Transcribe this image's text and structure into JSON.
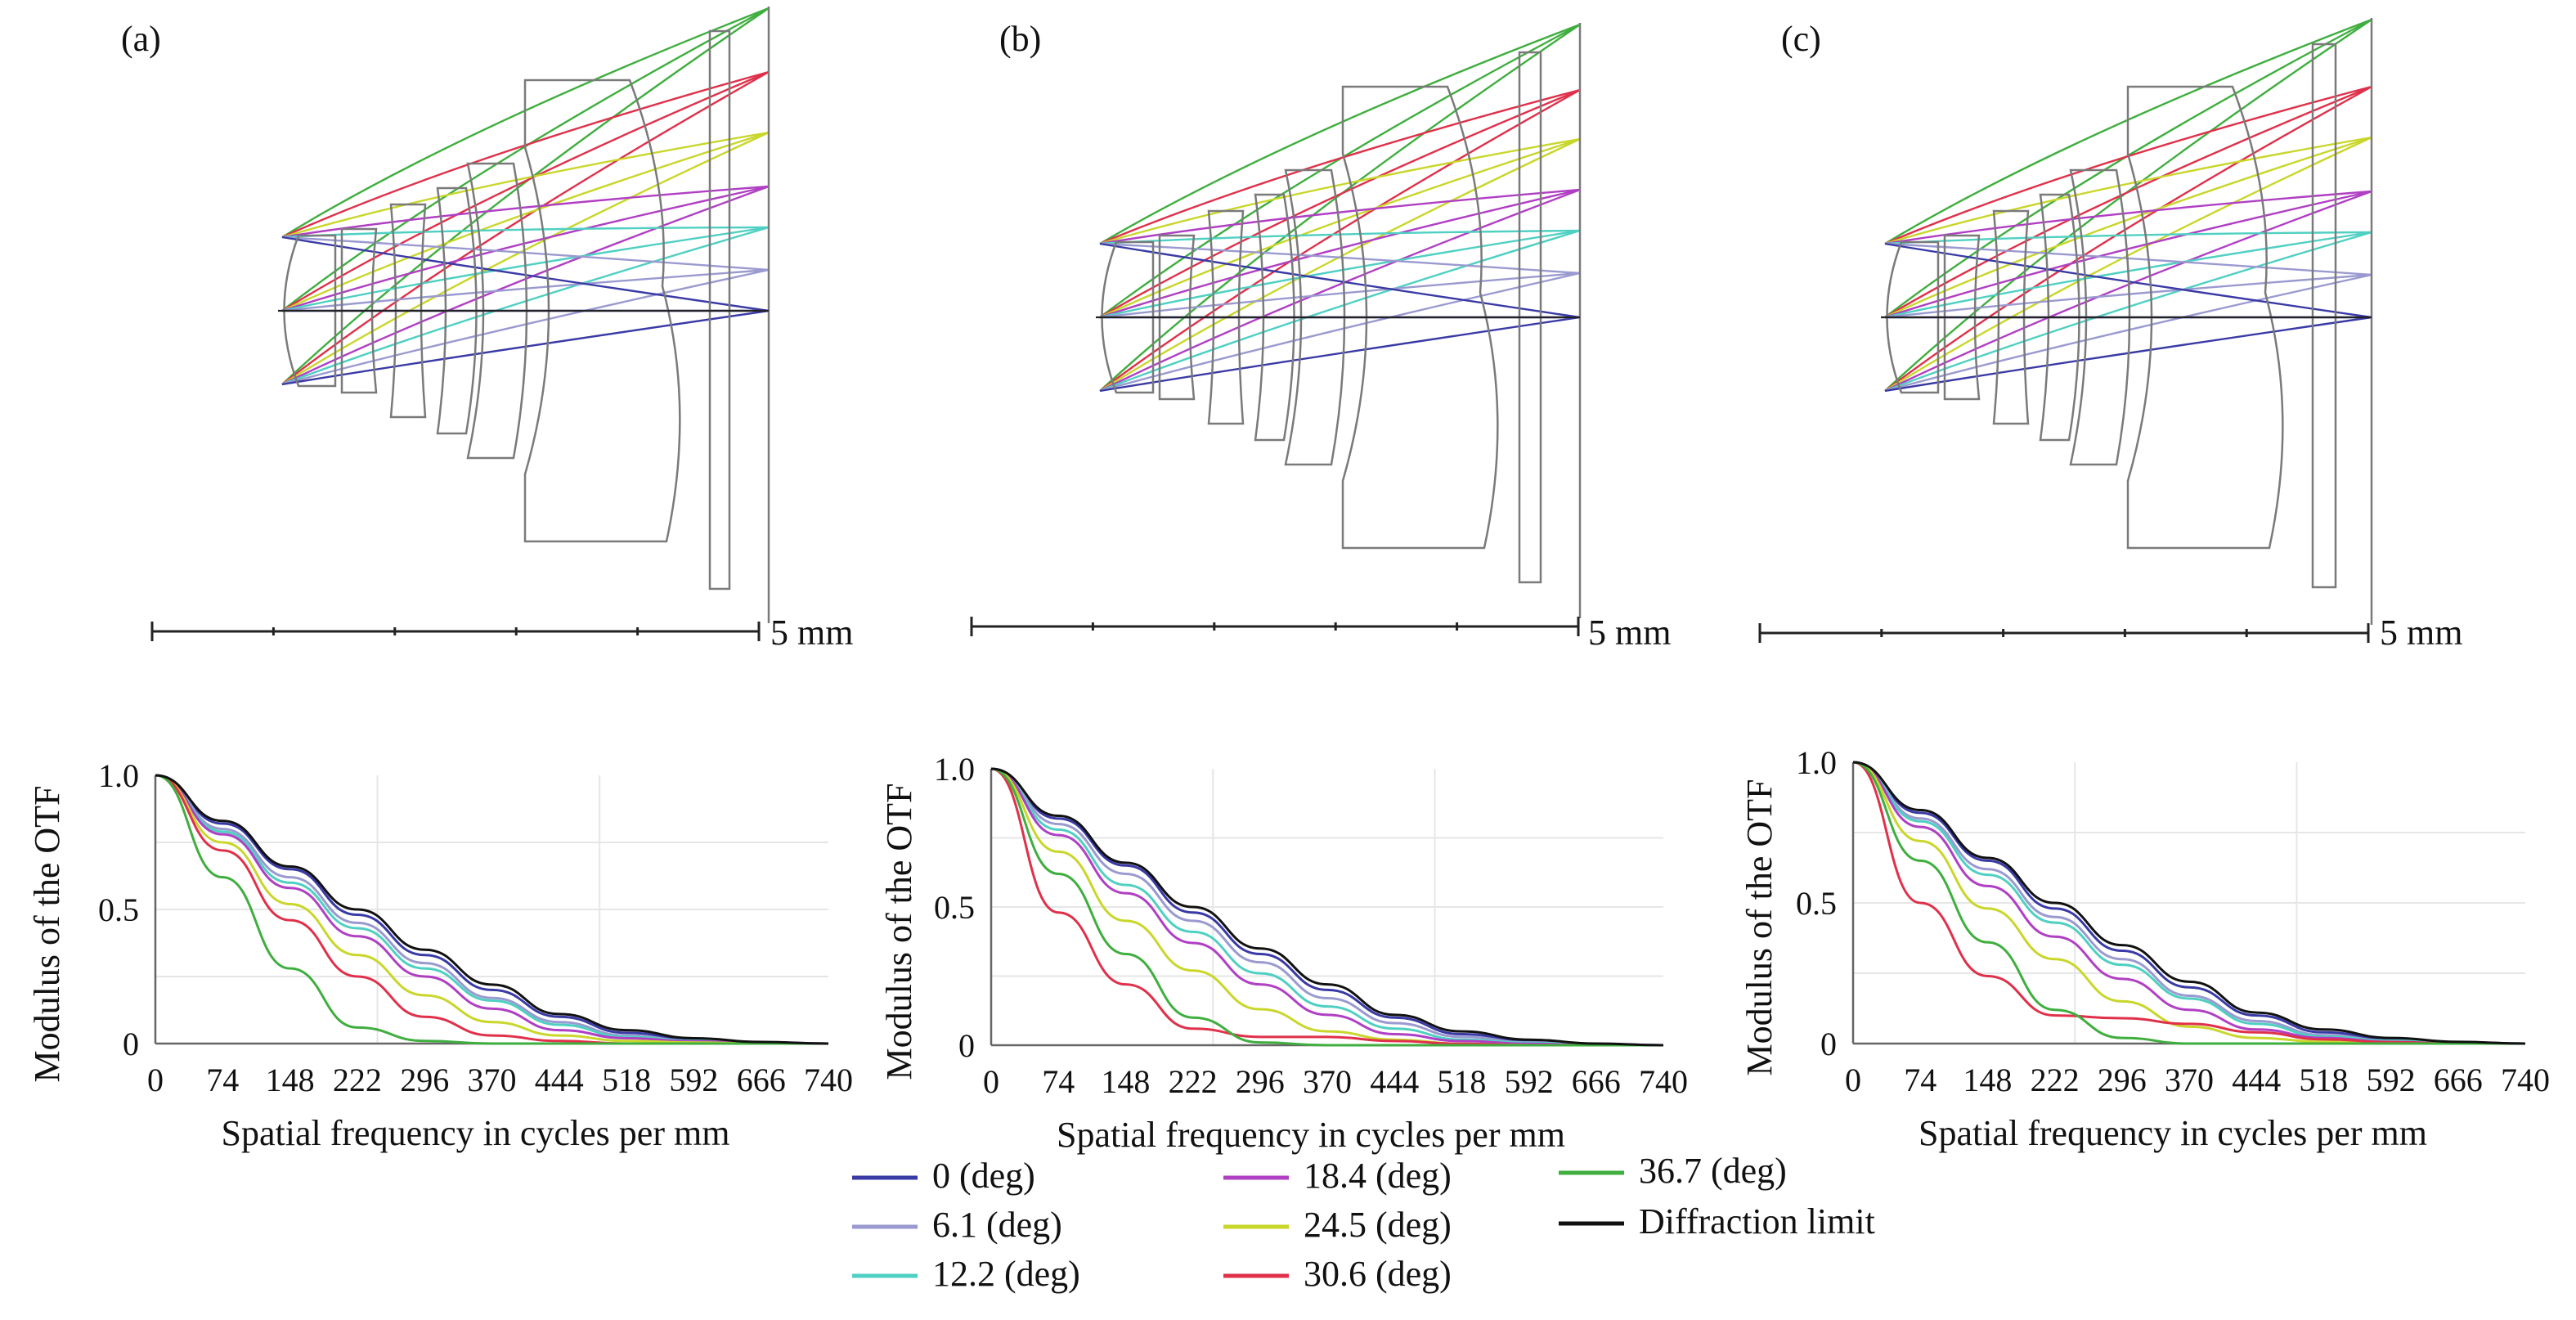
{
  "figure": {
    "panels": [
      {
        "label": "(a)",
        "scale_label": "5 mm"
      },
      {
        "label": "(b)",
        "scale_label": "5 mm"
      },
      {
        "label": "(c)",
        "scale_label": "5 mm"
      }
    ],
    "legend": [
      {
        "name": "0 (deg)",
        "color": "#3a3aa6"
      },
      {
        "name": "6.1 (deg)",
        "color": "#9a9ad0"
      },
      {
        "name": "12.2 (deg)",
        "color": "#4fd0c2"
      },
      {
        "name": "18.4 (deg)",
        "color": "#b03fc4"
      },
      {
        "name": "24.5 (deg)",
        "color": "#c9d62a"
      },
      {
        "name": "30.6 (deg)",
        "color": "#e0304a"
      },
      {
        "name": "36.7 (deg)",
        "color": "#3fae3f"
      },
      {
        "name": "Diffraction limit",
        "color": "#111111"
      }
    ]
  },
  "chart_data": [
    {
      "type": "line",
      "panel": "(a)",
      "xlabel": "Spatial frequency in cycles per mm",
      "ylabel": "Modulus of the OTF",
      "xlim": [
        0,
        740
      ],
      "ylim": [
        0,
        1.0
      ],
      "x_ticks": [
        "0",
        "74",
        "148",
        "222",
        "296",
        "370",
        "444",
        "518",
        "592",
        "666",
        "740"
      ],
      "y_ticks": [
        "0",
        "0.5",
        "1.0"
      ],
      "x": [
        0,
        74,
        148,
        222,
        296,
        370,
        444,
        518,
        592,
        666,
        740
      ],
      "series": [
        {
          "name": "0 (deg)",
          "values": [
            1.0,
            0.82,
            0.65,
            0.48,
            0.33,
            0.2,
            0.1,
            0.04,
            0.015,
            0.005,
            0.0
          ]
        },
        {
          "name": "6.1 (deg)",
          "values": [
            1.0,
            0.8,
            0.62,
            0.45,
            0.3,
            0.17,
            0.08,
            0.03,
            0.01,
            0.004,
            0.0
          ]
        },
        {
          "name": "12.2 (deg)",
          "values": [
            1.0,
            0.79,
            0.6,
            0.43,
            0.28,
            0.16,
            0.07,
            0.025,
            0.01,
            0.003,
            0.0
          ]
        },
        {
          "name": "18.4 (deg)",
          "values": [
            1.0,
            0.78,
            0.58,
            0.4,
            0.25,
            0.13,
            0.05,
            0.02,
            0.008,
            0.003,
            0.0
          ]
        },
        {
          "name": "24.5 (deg)",
          "values": [
            1.0,
            0.75,
            0.52,
            0.33,
            0.18,
            0.08,
            0.03,
            0.01,
            0.004,
            0.0,
            0.0
          ]
        },
        {
          "name": "30.6 (deg)",
          "values": [
            1.0,
            0.72,
            0.46,
            0.25,
            0.1,
            0.03,
            0.01,
            0.0,
            0.0,
            0.0,
            0.0
          ]
        },
        {
          "name": "36.7 (deg)",
          "values": [
            1.0,
            0.62,
            0.28,
            0.06,
            0.01,
            0.0,
            0.0,
            0.0,
            0.0,
            0.0,
            0.0
          ]
        },
        {
          "name": "Diffraction limit",
          "values": [
            1.0,
            0.83,
            0.66,
            0.5,
            0.35,
            0.22,
            0.11,
            0.05,
            0.02,
            0.006,
            0.0
          ]
        }
      ]
    },
    {
      "type": "line",
      "panel": "(b)",
      "xlabel": "Spatial frequency in cycles per mm",
      "ylabel": "Modulus of the OTF",
      "xlim": [
        0,
        740
      ],
      "ylim": [
        0,
        1.0
      ],
      "x_ticks": [
        "0",
        "74",
        "148",
        "222",
        "296",
        "370",
        "444",
        "518",
        "592",
        "666",
        "740"
      ],
      "y_ticks": [
        "0",
        "0.5",
        "1.0"
      ],
      "x": [
        0,
        74,
        148,
        222,
        296,
        370,
        444,
        518,
        592,
        666,
        740
      ],
      "series": [
        {
          "name": "0 (deg)",
          "values": [
            1.0,
            0.82,
            0.65,
            0.48,
            0.33,
            0.2,
            0.1,
            0.04,
            0.015,
            0.005,
            0.0
          ]
        },
        {
          "name": "6.1 (deg)",
          "values": [
            1.0,
            0.8,
            0.62,
            0.45,
            0.3,
            0.17,
            0.08,
            0.03,
            0.01,
            0.004,
            0.0
          ]
        },
        {
          "name": "12.2 (deg)",
          "values": [
            1.0,
            0.78,
            0.58,
            0.41,
            0.26,
            0.14,
            0.06,
            0.02,
            0.008,
            0.003,
            0.0
          ]
        },
        {
          "name": "18.4 (deg)",
          "values": [
            1.0,
            0.76,
            0.55,
            0.37,
            0.22,
            0.11,
            0.04,
            0.015,
            0.005,
            0.0,
            0.0
          ]
        },
        {
          "name": "24.5 (deg)",
          "values": [
            1.0,
            0.7,
            0.45,
            0.27,
            0.13,
            0.05,
            0.02,
            0.005,
            0.0,
            0.0,
            0.0
          ]
        },
        {
          "name": "30.6 (deg)",
          "values": [
            1.0,
            0.48,
            0.22,
            0.06,
            0.03,
            0.03,
            0.015,
            0.005,
            0.0,
            0.0,
            0.0
          ]
        },
        {
          "name": "36.7 (deg)",
          "values": [
            1.0,
            0.62,
            0.33,
            0.1,
            0.01,
            0.0,
            0.0,
            0.0,
            0.0,
            0.0,
            0.0
          ]
        },
        {
          "name": "Diffraction limit",
          "values": [
            1.0,
            0.83,
            0.66,
            0.5,
            0.35,
            0.22,
            0.11,
            0.05,
            0.02,
            0.006,
            0.0
          ]
        }
      ]
    },
    {
      "type": "line",
      "panel": "(c)",
      "xlabel": "Spatial frequency in cycles per mm",
      "ylabel": "Modulus of the OTF",
      "xlim": [
        0,
        740
      ],
      "ylim": [
        0,
        1.0
      ],
      "x_ticks": [
        "0",
        "74",
        "148",
        "222",
        "296",
        "370",
        "444",
        "518",
        "592",
        "666",
        "740"
      ],
      "y_ticks": [
        "0",
        "0.5",
        "1.0"
      ],
      "x": [
        0,
        74,
        148,
        222,
        296,
        370,
        444,
        518,
        592,
        666,
        740
      ],
      "series": [
        {
          "name": "0 (deg)",
          "values": [
            1.0,
            0.82,
            0.65,
            0.48,
            0.33,
            0.2,
            0.1,
            0.04,
            0.015,
            0.005,
            0.0
          ]
        },
        {
          "name": "6.1 (deg)",
          "values": [
            1.0,
            0.8,
            0.62,
            0.45,
            0.3,
            0.17,
            0.08,
            0.03,
            0.01,
            0.004,
            0.0
          ]
        },
        {
          "name": "12.2 (deg)",
          "values": [
            1.0,
            0.79,
            0.6,
            0.43,
            0.28,
            0.16,
            0.07,
            0.025,
            0.01,
            0.003,
            0.0
          ]
        },
        {
          "name": "18.4 (deg)",
          "values": [
            1.0,
            0.77,
            0.56,
            0.38,
            0.23,
            0.12,
            0.05,
            0.02,
            0.006,
            0.0,
            0.0
          ]
        },
        {
          "name": "24.5 (deg)",
          "values": [
            1.0,
            0.72,
            0.48,
            0.3,
            0.15,
            0.06,
            0.02,
            0.006,
            0.0,
            0.0,
            0.0
          ]
        },
        {
          "name": "30.6 (deg)",
          "values": [
            1.0,
            0.5,
            0.24,
            0.1,
            0.09,
            0.07,
            0.04,
            0.015,
            0.005,
            0.0,
            0.0
          ]
        },
        {
          "name": "36.7 (deg)",
          "values": [
            1.0,
            0.65,
            0.36,
            0.12,
            0.02,
            0.0,
            0.0,
            0.0,
            0.0,
            0.0,
            0.0
          ]
        },
        {
          "name": "Diffraction limit",
          "values": [
            1.0,
            0.83,
            0.66,
            0.5,
            0.35,
            0.22,
            0.11,
            0.05,
            0.02,
            0.006,
            0.0
          ]
        }
      ]
    }
  ]
}
